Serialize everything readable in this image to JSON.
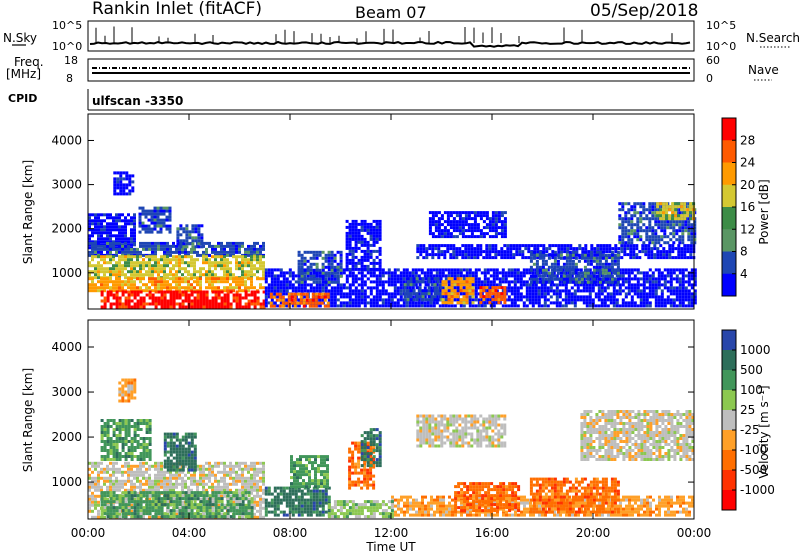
{
  "header": {
    "station": "Rankin Inlet (fitACF)",
    "beam": "Beam 07",
    "date": "05/Sep/2018"
  },
  "noise_panel": {
    "left_label": "N.Sky",
    "right_label": "N.Search",
    "left_ticks": [
      "10^5",
      "10^0"
    ],
    "right_ticks": [
      "10^5",
      "10^0"
    ]
  },
  "freq_panel": {
    "left_label_1": "Freq.",
    "left_label_2": "[MHz]",
    "right_label": "Nave",
    "left_ticks": [
      "18",
      "8"
    ],
    "right_ticks": [
      "60",
      "0"
    ]
  },
  "cpid_panel": {
    "label": "CPID",
    "value": "ulfscan -3350"
  },
  "time_axis": {
    "label": "Time UT",
    "ticks": [
      "00:00",
      "04:00",
      "08:00",
      "12:00",
      "16:00",
      "20:00",
      "00:00"
    ]
  },
  "chart_data": [
    {
      "type": "heatmap",
      "quantity": "Power",
      "ylabel": "Slant Range [km]",
      "yticks": [
        1000,
        2000,
        3000,
        4000
      ],
      "ylim": [
        180,
        4600
      ],
      "xlim_hours": [
        0,
        24
      ],
      "colorbar_label": "Power [dB]",
      "colorbar_ticks": [
        "28",
        "24",
        "20",
        "16",
        "12",
        "8",
        "4"
      ],
      "colorbar_colors": [
        "#ff0000",
        "#ff5a00",
        "#ff9a00",
        "#d4c832",
        "#3c8c46",
        "#5a9664",
        "#1e46b4",
        "#0000ff"
      ],
      "regions": [
        {
          "t0": 0.0,
          "t1": 1.8,
          "r0": 1600,
          "r1": 2350,
          "level": 7
        },
        {
          "t0": 0.0,
          "t1": 7.0,
          "r0": 1400,
          "r1": 1700,
          "level": 6
        },
        {
          "t0": 0.0,
          "t1": 7.0,
          "r0": 900,
          "r1": 1400,
          "level": 3
        },
        {
          "t0": 0.0,
          "t1": 7.0,
          "r0": 600,
          "r1": 900,
          "level": 2
        },
        {
          "t0": 0.5,
          "t1": 7.0,
          "r0": 200,
          "r1": 600,
          "level": 0
        },
        {
          "t0": 1.0,
          "t1": 1.8,
          "r0": 2800,
          "r1": 3300,
          "level": 7
        },
        {
          "t0": 2.0,
          "t1": 3.2,
          "r0": 1900,
          "r1": 2500,
          "level": 6
        },
        {
          "t0": 3.5,
          "t1": 4.5,
          "r0": 1600,
          "r1": 2100,
          "level": 6
        },
        {
          "t0": 7.0,
          "t1": 24.0,
          "r0": 250,
          "r1": 1100,
          "level": 7
        },
        {
          "t0": 7.2,
          "t1": 9.5,
          "r0": 250,
          "r1": 550,
          "level": 1
        },
        {
          "t0": 8.3,
          "t1": 10.0,
          "r0": 800,
          "r1": 1500,
          "level": 6
        },
        {
          "t0": 10.2,
          "t1": 11.6,
          "r0": 1100,
          "r1": 2200,
          "level": 7
        },
        {
          "t0": 12.5,
          "t1": 14.0,
          "r0": 400,
          "r1": 900,
          "level": 6
        },
        {
          "t0": 14.0,
          "t1": 15.3,
          "r0": 300,
          "r1": 900,
          "level": 2
        },
        {
          "t0": 15.5,
          "t1": 16.5,
          "r0": 300,
          "r1": 700,
          "level": 1
        },
        {
          "t0": 13.0,
          "t1": 24.0,
          "r0": 1350,
          "r1": 1650,
          "level": 7
        },
        {
          "t0": 13.5,
          "t1": 16.5,
          "r0": 1800,
          "r1": 2400,
          "level": 7
        },
        {
          "t0": 17.5,
          "t1": 21.0,
          "r0": 800,
          "r1": 1500,
          "level": 6
        },
        {
          "t0": 21.0,
          "t1": 24.0,
          "r0": 1700,
          "r1": 2600,
          "level": 6
        },
        {
          "t0": 22.5,
          "t1": 24.0,
          "r0": 2200,
          "r1": 2600,
          "level": 3
        }
      ]
    },
    {
      "type": "heatmap",
      "quantity": "Velocity",
      "ylabel": "Slant Range [km]",
      "yticks": [
        1000,
        2000,
        3000,
        4000
      ],
      "ylim": [
        180,
        4600
      ],
      "xlim_hours": [
        0,
        24
      ],
      "colorbar_label": "Velocity [m s⁻¹]",
      "colorbar_ticks": [
        "1000",
        "500",
        "100",
        "25",
        "-25",
        "-100",
        "-500",
        "-1000"
      ],
      "colorbar_colors": [
        "#2846aa",
        "#2d6e5a",
        "#41965a",
        "#8cc850",
        "#bebebe",
        "#ffa028",
        "#ff6e00",
        "#ff3200",
        "#ff0000"
      ],
      "regions": [
        {
          "t0": 0.0,
          "t1": 7.0,
          "r0": 250,
          "r1": 1450,
          "level": 4
        },
        {
          "t0": 0.5,
          "t1": 2.5,
          "r0": 1500,
          "r1": 2400,
          "level": 2
        },
        {
          "t0": 1.2,
          "t1": 1.8,
          "r0": 2800,
          "r1": 3300,
          "level": 5
        },
        {
          "t0": 3.0,
          "t1": 4.3,
          "r0": 1300,
          "r1": 2100,
          "level": 1
        },
        {
          "t0": 0.5,
          "t1": 6.5,
          "r0": 250,
          "r1": 800,
          "level": 2
        },
        {
          "t0": 7.0,
          "t1": 9.5,
          "r0": 300,
          "r1": 900,
          "level": 1
        },
        {
          "t0": 8.0,
          "t1": 9.5,
          "r0": 900,
          "r1": 1600,
          "level": 2
        },
        {
          "t0": 10.3,
          "t1": 11.3,
          "r0": 900,
          "r1": 1900,
          "level": 6
        },
        {
          "t0": 10.8,
          "t1": 11.6,
          "r0": 1400,
          "r1": 2200,
          "level": 1
        },
        {
          "t0": 12.0,
          "t1": 24.0,
          "r0": 250,
          "r1": 700,
          "level": 5
        },
        {
          "t0": 14.5,
          "t1": 17.0,
          "r0": 350,
          "r1": 1000,
          "level": 6
        },
        {
          "t0": 17.5,
          "t1": 21.0,
          "r0": 350,
          "r1": 1100,
          "level": 6
        },
        {
          "t0": 13.0,
          "t1": 16.5,
          "r0": 1800,
          "r1": 2500,
          "level": 4
        },
        {
          "t0": 19.5,
          "t1": 24.0,
          "r0": 1500,
          "r1": 2600,
          "level": 4
        },
        {
          "t0": 9.5,
          "t1": 12.0,
          "r0": 250,
          "r1": 600,
          "level": 3
        }
      ]
    }
  ]
}
